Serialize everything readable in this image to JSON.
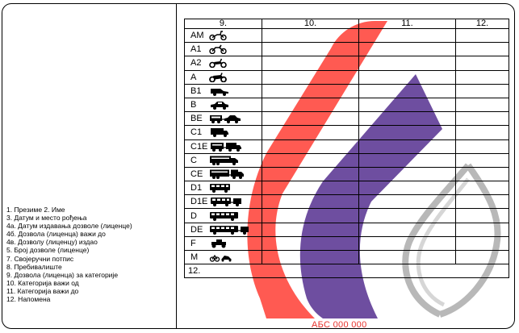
{
  "legend": [
    "1. Презиме  2. Име",
    "3. Датум и место рођења",
    "4а. Датум издавања дозволе (лиценце)",
    "4б. Дозвола (лиценца) важи до",
    "4в. Дозволу (лиценцу) издао",
    "5. Број дозволе (лиценце)",
    "7. Својеручни потпис",
    "8. Пребивалиште",
    "9. Дозвола (лиценца) за категорије",
    "10. Категорија важи од",
    "11. Категорија важи до",
    "12. Напомена"
  ],
  "grid": {
    "headers": [
      "9.",
      "10.",
      "11.",
      "12."
    ],
    "categories": [
      {
        "label": "AM",
        "icon": "moped-icon"
      },
      {
        "label": "A1",
        "icon": "light-motorcycle-icon"
      },
      {
        "label": "A2",
        "icon": "motorcycle-icon"
      },
      {
        "label": "A",
        "icon": "heavy-motorcycle-icon"
      },
      {
        "label": "B1",
        "icon": "light-vehicle-icon"
      },
      {
        "label": "B",
        "icon": "car-icon"
      },
      {
        "label": "BE",
        "icon": "car-trailer-icon"
      },
      {
        "label": "C1",
        "icon": "light-truck-icon"
      },
      {
        "label": "C1E",
        "icon": "light-truck-trailer-icon"
      },
      {
        "label": "C",
        "icon": "truck-icon"
      },
      {
        "label": "CE",
        "icon": "truck-trailer-icon"
      },
      {
        "label": "D1",
        "icon": "minibus-icon"
      },
      {
        "label": "D1E",
        "icon": "minibus-trailer-icon"
      },
      {
        "label": "D",
        "icon": "bus-icon"
      },
      {
        "label": "DE",
        "icon": "bus-trailer-icon"
      },
      {
        "label": "F",
        "icon": "tractor-icon"
      },
      {
        "label": "M",
        "icon": "mower-icon"
      }
    ],
    "remark_label": "12."
  },
  "serial": "АБС 000 000",
  "colors": {
    "red_ribbon": "#ff5a52",
    "purple_ribbon": "#6e4ea0",
    "grey_outline": "#b8b8b8",
    "serial": "#e8322c"
  }
}
